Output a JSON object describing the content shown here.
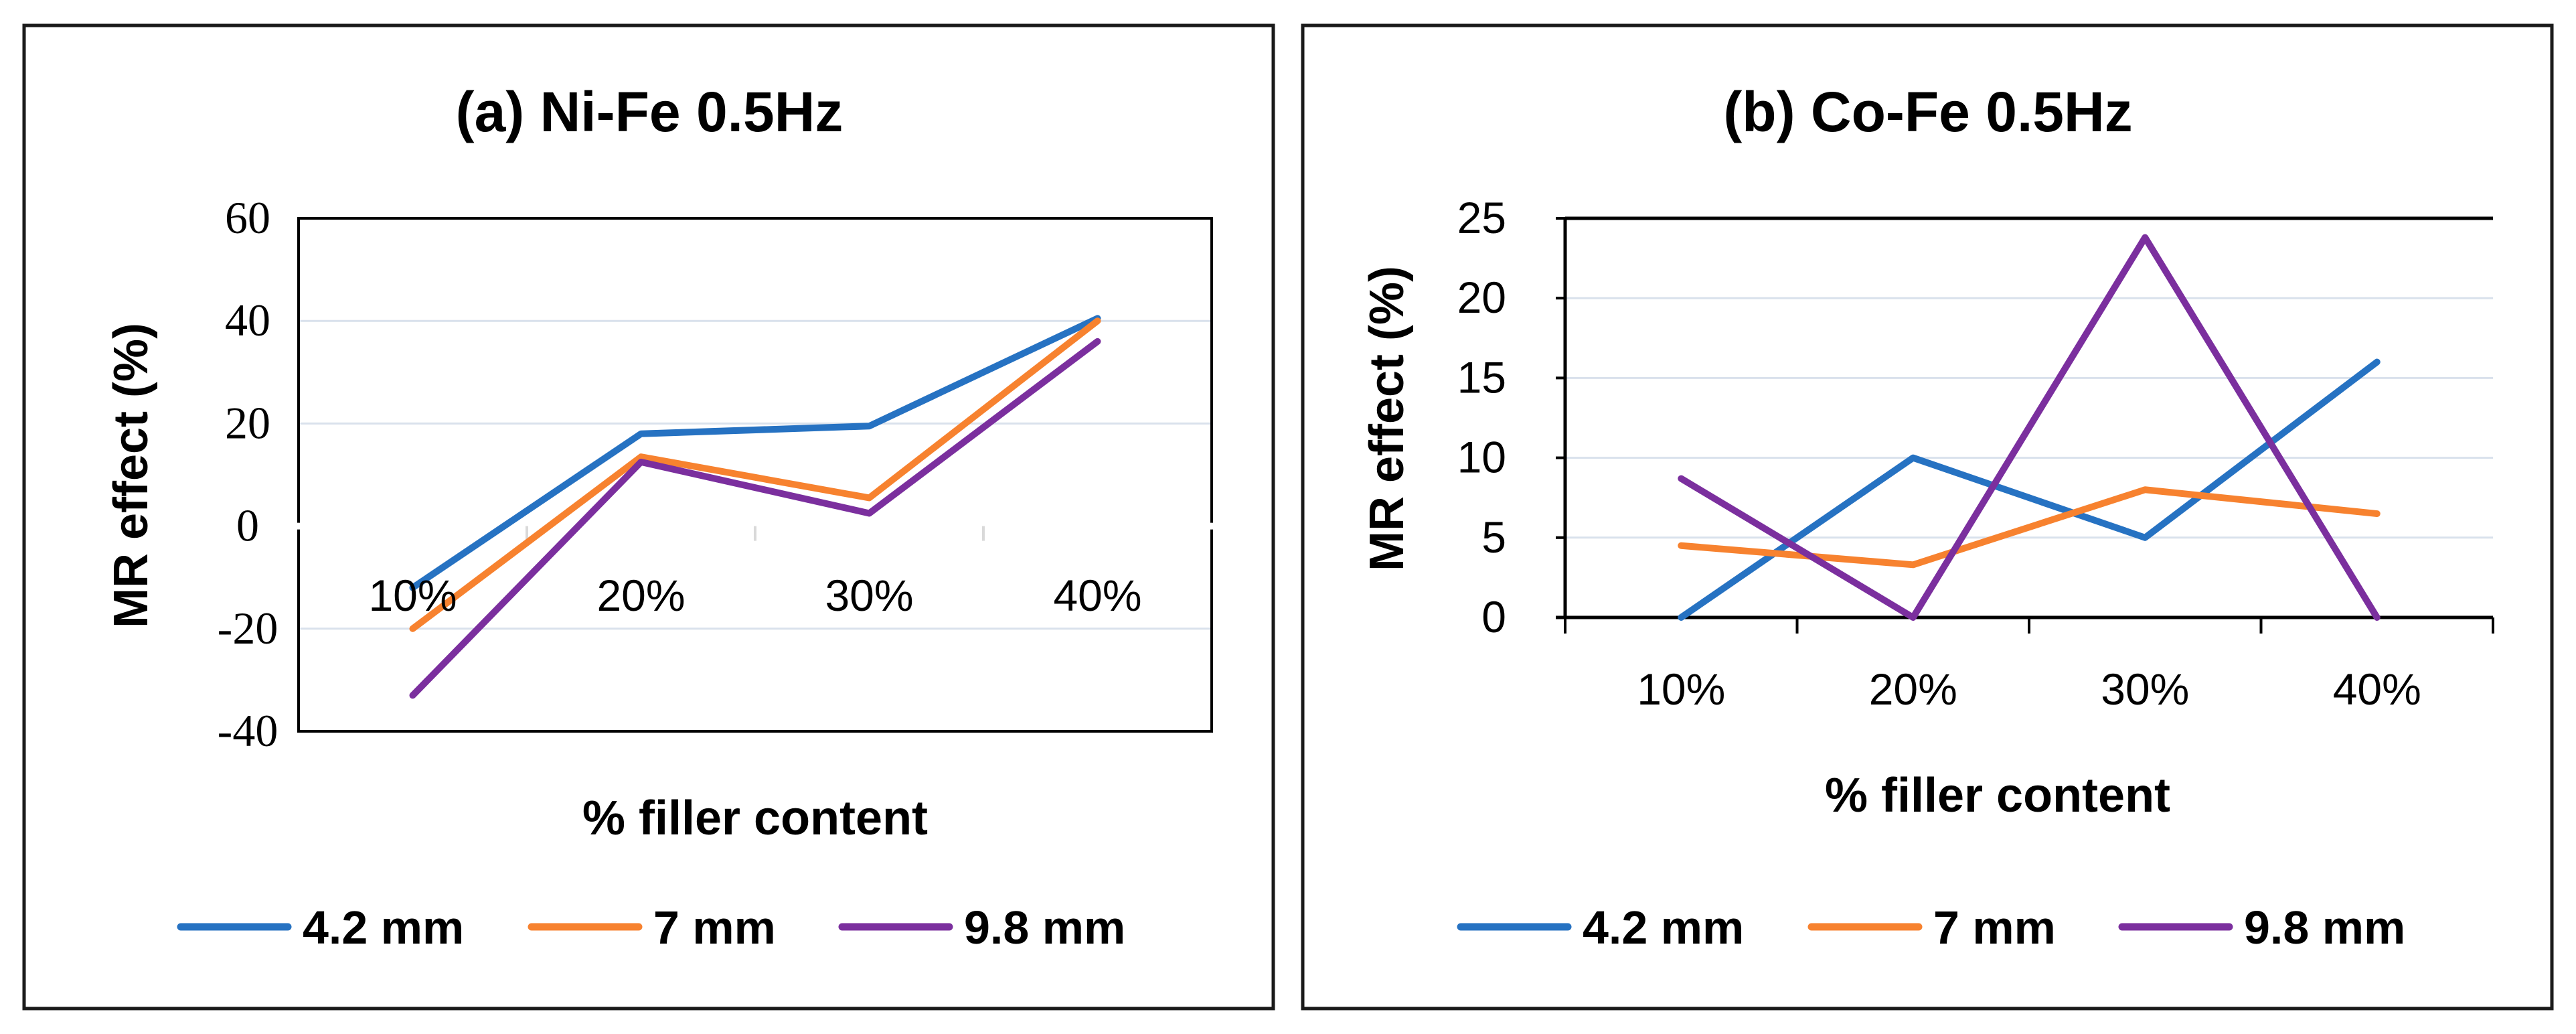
{
  "chart_data": [
    {
      "type": "line",
      "title": "(a) Ni-Fe 0.5Hz",
      "xlabel": "% filler content",
      "ylabel": "MR effect (%)",
      "categories": [
        "10%",
        "20%",
        "30%",
        "40%"
      ],
      "ylim": [
        -40,
        60
      ],
      "yticks": [
        "60",
        "40",
        "20",
        "0",
        "-20",
        "-40"
      ],
      "grid": true,
      "legend_position": "bottom",
      "series": [
        {
          "name": "4.2 mm",
          "color": "#2672c2",
          "values": [
            -12,
            18,
            19.5,
            40.5
          ]
        },
        {
          "name": "7 mm",
          "color": "#f7822f",
          "values": [
            -20,
            13.5,
            5.5,
            40
          ]
        },
        {
          "name": "9.8 mm",
          "color": "#7b2f9e",
          "values": [
            -33,
            12.5,
            2.5,
            36
          ]
        }
      ]
    },
    {
      "type": "line",
      "title": "(b) Co-Fe 0.5Hz",
      "xlabel": "% filler content",
      "ylabel": "MR effect (%)",
      "categories": [
        "10%",
        "20%",
        "30%",
        "40%"
      ],
      "ylim": [
        0,
        25
      ],
      "yticks": [
        "25",
        "20",
        "15",
        "10",
        "5",
        "0"
      ],
      "grid": true,
      "legend_position": "bottom",
      "series": [
        {
          "name": "4.2 mm",
          "color": "#2672c2",
          "values": [
            0,
            10,
            5,
            16
          ]
        },
        {
          "name": "7 mm",
          "color": "#f7822f",
          "values": [
            4.5,
            3.3,
            8,
            6.5
          ]
        },
        {
          "name": "9.8 mm",
          "color": "#7b2f9e",
          "values": [
            8.7,
            0,
            23.8,
            0
          ]
        }
      ]
    }
  ]
}
